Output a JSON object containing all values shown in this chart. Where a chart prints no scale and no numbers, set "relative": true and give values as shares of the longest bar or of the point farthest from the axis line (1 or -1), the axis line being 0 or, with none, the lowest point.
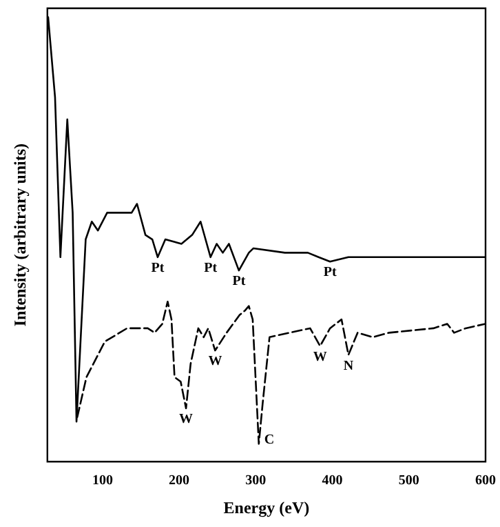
{
  "chart_data": {
    "type": "line",
    "relative": true,
    "xlabel": "Energy (eV)",
    "ylabel": "Intensity (arbitrary units)",
    "xlim": [
      28,
      600
    ],
    "xticks": [
      100,
      200,
      300,
      400,
      500,
      600
    ],
    "grid": false,
    "legend": false,
    "marker": "none",
    "series": [
      {
        "color": "#000000",
        "line_style": "solid",
        "x": [
          29,
          38,
          45,
          54,
          61,
          66,
          78,
          86,
          94,
          106,
          120,
          138,
          145,
          156,
          165,
          172,
          182,
          203,
          217,
          228,
          241,
          249,
          257,
          265,
          278,
          291,
          297,
          338,
          368,
          382,
          397,
          421,
          450,
          514,
          600
        ],
        "values": [
          1.0,
          0.82,
          0.46,
          0.77,
          0.56,
          0.09,
          0.5,
          0.54,
          0.52,
          0.56,
          0.56,
          0.56,
          0.58,
          0.51,
          0.5,
          0.46,
          0.5,
          0.49,
          0.51,
          0.54,
          0.46,
          0.49,
          0.47,
          0.49,
          0.43,
          0.47,
          0.48,
          0.47,
          0.47,
          0.46,
          0.45,
          0.46,
          0.46,
          0.46,
          0.46
        ]
      },
      {
        "color": "#000000",
        "line_style": "dashed",
        "x": [
          67,
          79,
          103,
          132,
          159,
          168,
          178,
          185,
          190,
          194,
          202,
          209,
          215,
          225,
          232,
          238,
          247,
          262,
          279,
          286,
          291,
          296,
          304,
          309,
          318,
          344,
          371,
          384,
          397,
          412,
          421,
          433,
          453,
          474,
          532,
          550,
          559,
          574,
          600
        ],
        "values": [
          0.1,
          0.19,
          0.27,
          0.3,
          0.3,
          0.29,
          0.31,
          0.36,
          0.32,
          0.19,
          0.18,
          0.12,
          0.22,
          0.3,
          0.28,
          0.3,
          0.25,
          0.29,
          0.33,
          0.34,
          0.35,
          0.32,
          0.04,
          0.13,
          0.28,
          0.29,
          0.3,
          0.26,
          0.3,
          0.32,
          0.24,
          0.29,
          0.28,
          0.29,
          0.3,
          0.31,
          0.29,
          0.3,
          0.31
        ]
      }
    ],
    "annotations": [
      {
        "text": "Pt",
        "x": 172,
        "y": 0.46
      },
      {
        "text": "Pt",
        "x": 241,
        "y": 0.46
      },
      {
        "text": "Pt",
        "x": 278,
        "y": 0.43
      },
      {
        "text": "Pt",
        "x": 397,
        "y": 0.45
      },
      {
        "text": "W",
        "x": 209,
        "y": 0.12
      },
      {
        "text": "W",
        "x": 247,
        "y": 0.25
      },
      {
        "text": "C",
        "x": 304,
        "y": 0.04
      },
      {
        "text": "W",
        "x": 384,
        "y": 0.26
      },
      {
        "text": "N",
        "x": 421,
        "y": 0.24
      }
    ]
  }
}
